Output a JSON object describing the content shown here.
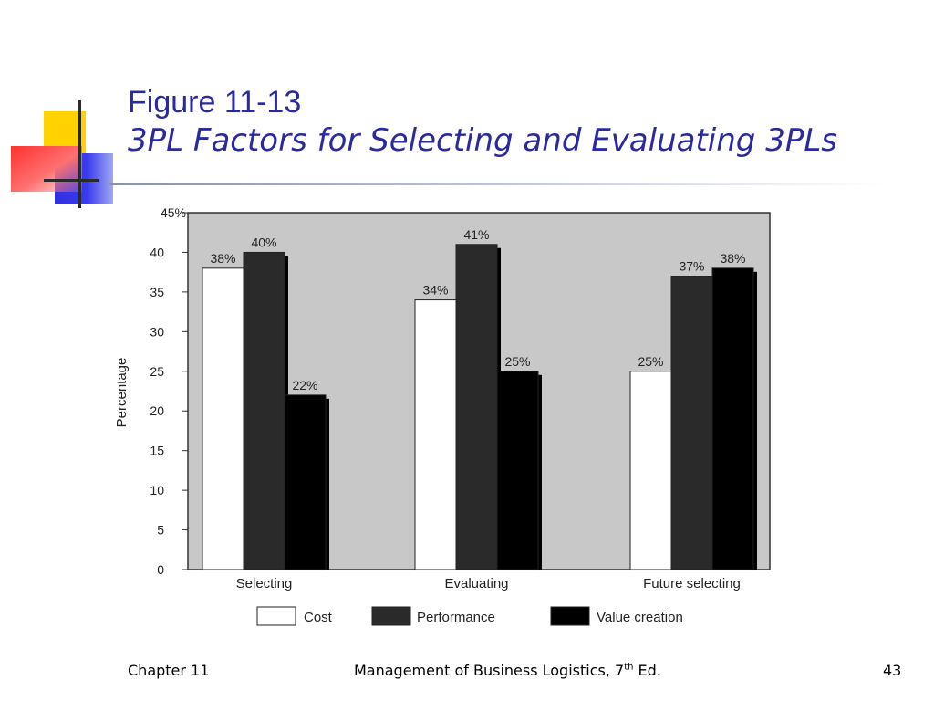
{
  "slide": {
    "title_line1": "Figure 11-13",
    "title_line2": "3PL Factors for Selecting and Evaluating 3PLs"
  },
  "footer": {
    "left": "Chapter 11",
    "center_main": "Management of Business Logistics, 7",
    "center_sup": "th",
    "center_end": " Ed.",
    "right": "43"
  },
  "colors": {
    "title": "#2a2a9e",
    "plot_background": "#c8c8c8",
    "cost": "#ffffff",
    "performance": "#2a2a2a",
    "value_creation": "#000000"
  },
  "chart_data": {
    "type": "bar",
    "categories": [
      "Selecting",
      "Evaluating",
      "Future selecting"
    ],
    "series": [
      {
        "name": "Cost",
        "values": [
          38,
          34,
          25
        ],
        "labels": [
          "38%",
          "34%",
          "25%"
        ],
        "color": "#ffffff"
      },
      {
        "name": "Performance",
        "values": [
          40,
          41,
          37
        ],
        "labels": [
          "40%",
          "41%",
          "37%"
        ],
        "color": "#2a2a2a"
      },
      {
        "name": "Value creation",
        "values": [
          22,
          25,
          38
        ],
        "labels": [
          "22%",
          "25%",
          "38%"
        ],
        "color": "#000000"
      }
    ],
    "ylabel": "Percentage",
    "ylim": [
      0,
      45
    ],
    "yticks": [
      "0",
      "5",
      "10",
      "15",
      "20",
      "25",
      "30",
      "35",
      "40",
      "45%"
    ],
    "grid": false,
    "legend_position": "bottom"
  }
}
